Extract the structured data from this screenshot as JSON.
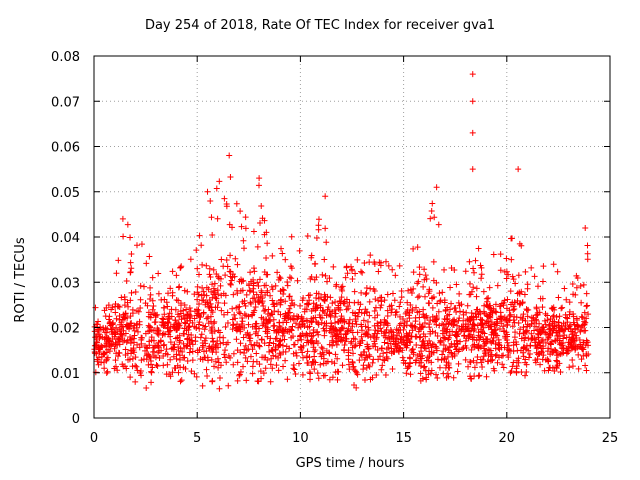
{
  "chart_data": {
    "type": "scatter",
    "title": "Day 254 of 2018, Rate Of TEC Index for receiver gva1",
    "xlabel": "GPS time / hours",
    "ylabel": "ROTI / TECUs",
    "xlim": [
      0,
      25
    ],
    "ylim": [
      0,
      0.08
    ],
    "x_ticks": [
      0,
      5,
      10,
      15,
      20,
      25
    ],
    "x_tick_labels": [
      "0",
      "5",
      "10",
      "15",
      "20",
      "25"
    ],
    "y_ticks": [
      0,
      0.01,
      0.02,
      0.03,
      0.04,
      0.05,
      0.06,
      0.07,
      0.08
    ],
    "y_tick_labels": [
      "0",
      "0.01",
      "0.02",
      "0.03",
      "0.04",
      "0.05",
      "0.06",
      "0.07",
      "0.08"
    ],
    "grid": true,
    "marker": "+",
    "series": [
      {
        "name": "gva1 ROTI",
        "color": "#ff0000",
        "band_hours": [
          0,
          0.5,
          1,
          1.5,
          2,
          2.5,
          3,
          3.5,
          4,
          4.5,
          5,
          5.5,
          6,
          6.5,
          7,
          7.5,
          8,
          8.5,
          9,
          9.5,
          10,
          10.5,
          11,
          11.5,
          12,
          12.5,
          13,
          13.5,
          14,
          14.5,
          15,
          15.5,
          16,
          16.5,
          17,
          17.5,
          18,
          18.5,
          19,
          19.5,
          20,
          20.5,
          21,
          21.5,
          22,
          22.5,
          23,
          23.5,
          24
        ],
        "band_low": [
          0.008,
          0.009,
          0.01,
          0.01,
          0.005,
          0.006,
          0.007,
          0.008,
          0.008,
          0.008,
          0.006,
          0.005,
          0.006,
          0.007,
          0.008,
          0.008,
          0.008,
          0.008,
          0.008,
          0.008,
          0.008,
          0.008,
          0.009,
          0.008,
          0.008,
          0.006,
          0.007,
          0.008,
          0.009,
          0.009,
          0.009,
          0.008,
          0.008,
          0.008,
          0.008,
          0.008,
          0.008,
          0.008,
          0.009,
          0.01,
          0.01,
          0.01,
          0.009,
          0.009,
          0.008,
          0.01,
          0.01,
          0.01,
          0.009
        ],
        "band_high": [
          0.027,
          0.024,
          0.03,
          0.044,
          0.04,
          0.038,
          0.033,
          0.036,
          0.037,
          0.036,
          0.04,
          0.048,
          0.052,
          0.057,
          0.046,
          0.048,
          0.053,
          0.044,
          0.042,
          0.041,
          0.04,
          0.042,
          0.049,
          0.036,
          0.038,
          0.036,
          0.034,
          0.037,
          0.041,
          0.033,
          0.035,
          0.038,
          0.04,
          0.05,
          0.033,
          0.034,
          0.035,
          0.04,
          0.038,
          0.036,
          0.04,
          0.055,
          0.033,
          0.035,
          0.033,
          0.036,
          0.03,
          0.032,
          0.042
        ],
        "band_mean": [
          0.018,
          0.016,
          0.018,
          0.02,
          0.02,
          0.018,
          0.019,
          0.019,
          0.019,
          0.019,
          0.021,
          0.022,
          0.022,
          0.023,
          0.022,
          0.021,
          0.021,
          0.02,
          0.02,
          0.02,
          0.02,
          0.02,
          0.021,
          0.019,
          0.019,
          0.018,
          0.018,
          0.019,
          0.019,
          0.018,
          0.018,
          0.018,
          0.019,
          0.02,
          0.018,
          0.018,
          0.019,
          0.019,
          0.019,
          0.019,
          0.02,
          0.021,
          0.018,
          0.019,
          0.018,
          0.019,
          0.018,
          0.018,
          0.019
        ],
        "spikes": [
          {
            "x": 18.35,
            "y": 0.076
          },
          {
            "x": 18.35,
            "y": 0.07
          },
          {
            "x": 18.35,
            "y": 0.063
          },
          {
            "x": 18.35,
            "y": 0.055
          },
          {
            "x": 20.55,
            "y": 0.055
          },
          {
            "x": 6.55,
            "y": 0.058
          },
          {
            "x": 8.0,
            "y": 0.053
          },
          {
            "x": 5.5,
            "y": 0.05
          },
          {
            "x": 11.2,
            "y": 0.049
          },
          {
            "x": 16.6,
            "y": 0.051
          },
          {
            "x": 1.4,
            "y": 0.044
          },
          {
            "x": 23.8,
            "y": 0.042
          }
        ]
      }
    ]
  }
}
